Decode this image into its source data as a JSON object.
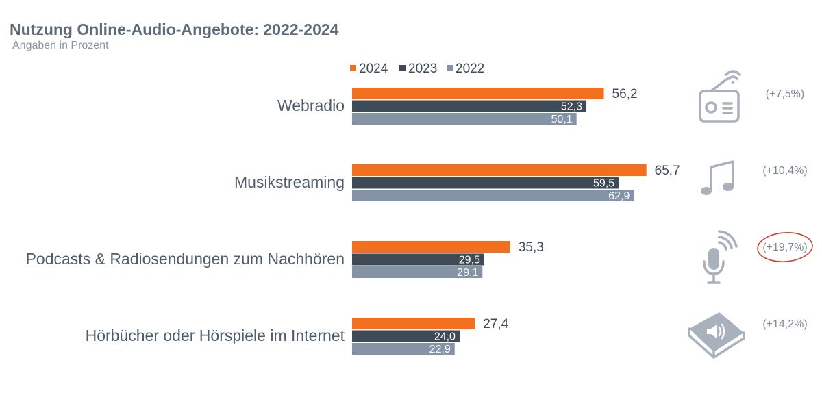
{
  "header": {
    "title": "Nutzung Online-Audio-Angebote: 2022-2024",
    "subtitle": "Angaben in Prozent"
  },
  "colors": {
    "2024": "#f26f1f",
    "2023": "#3f4a57",
    "2022": "#8494a6",
    "highlight_circle": "#c9432b"
  },
  "chart_data": {
    "type": "bar",
    "orientation": "horizontal",
    "categories": [
      "Webradio",
      "Musikstreaming",
      "Podcasts & Radiosendungen zum Nachhören",
      "Hörbücher oder Hörspiele im Internet"
    ],
    "series": [
      {
        "name": "2024",
        "values": [
          56.2,
          65.7,
          35.3,
          27.4
        ],
        "labels": [
          "56,2",
          "65,7",
          "35,3",
          "27,4"
        ]
      },
      {
        "name": "2023",
        "values": [
          52.3,
          59.5,
          29.5,
          24.0
        ],
        "labels": [
          "52,3",
          "59,5",
          "29,5",
          "24,0"
        ]
      },
      {
        "name": "2022",
        "values": [
          50.1,
          62.9,
          29.1,
          22.9
        ],
        "labels": [
          "50,1",
          "62,9",
          "29,1",
          "22,9"
        ]
      }
    ],
    "changes": [
      "(+7,5%)",
      "(+10,4%)",
      "(+19,7%)",
      "(+14,2%)"
    ],
    "highlighted_change_index": 2,
    "icons": [
      "radio-icon",
      "music-note-icon",
      "microphone-icon",
      "audiobook-icon"
    ],
    "legend_position": "top",
    "grid": false
  }
}
